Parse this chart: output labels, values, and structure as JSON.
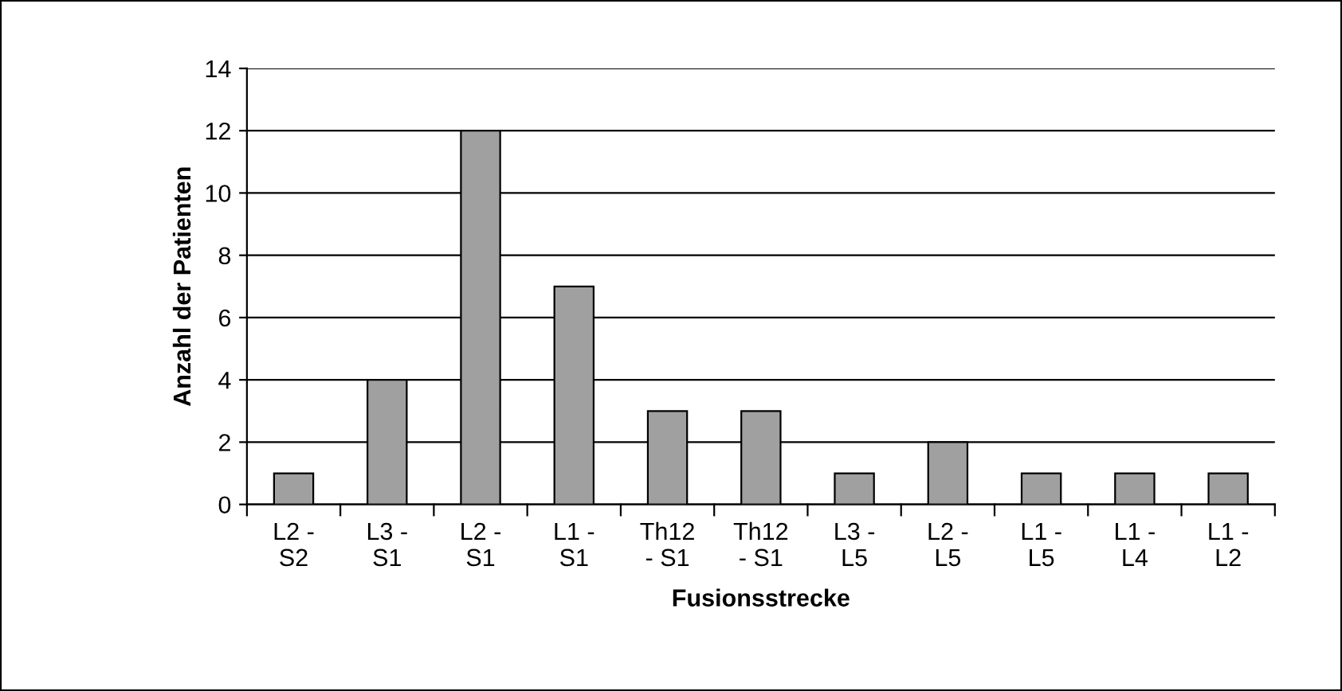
{
  "chart_data": {
    "type": "bar",
    "categories": [
      "L2 -\nS2",
      "L3 -\nS1",
      "L2 -\nS1",
      "L1 -\nS1",
      "Th12\n- S1",
      "Th12\n- S1",
      "L3 -\nL5",
      "L2 -\nL5",
      "L1 -\nL5",
      "L1 -\nL4",
      "L1 -\nL2"
    ],
    "values": [
      1,
      4,
      12,
      7,
      3,
      3,
      1,
      2,
      1,
      1,
      1
    ],
    "color": "#a0a0a0",
    "xlabel": "Fusionsstrecke",
    "ylabel": "Anzahl der Patienten",
    "ylim": [
      0,
      14
    ],
    "yticks": [
      0,
      2,
      4,
      6,
      8,
      10,
      12,
      14
    ],
    "grid": "y",
    "legend": false
  }
}
